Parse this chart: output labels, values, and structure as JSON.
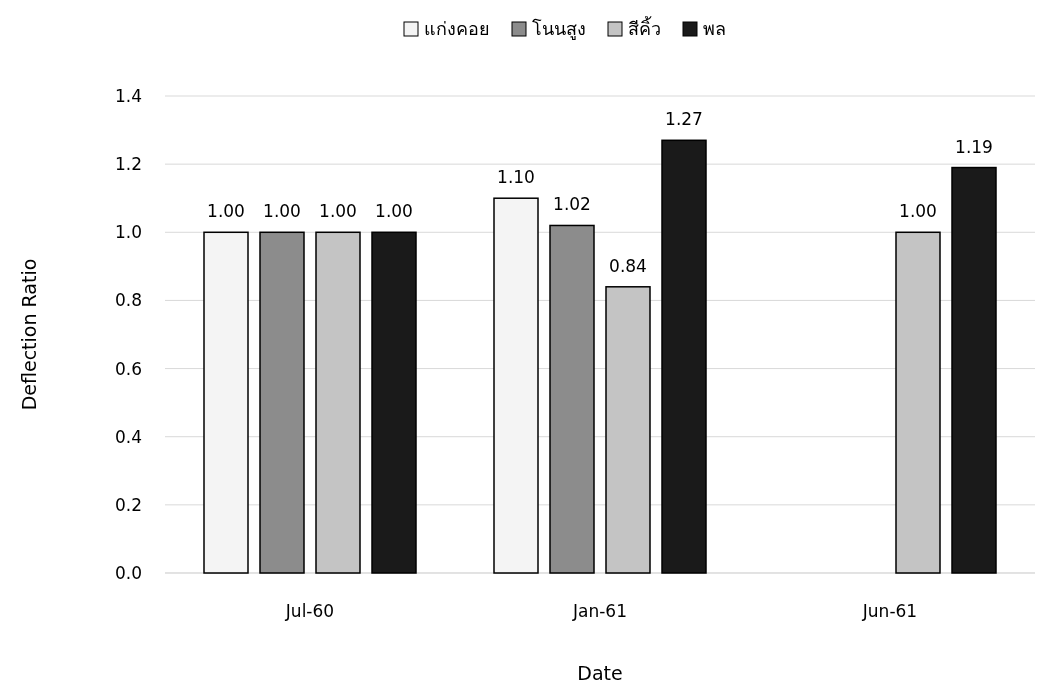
{
  "chart_data": {
    "type": "bar",
    "xlabel": "Date",
    "ylabel": "Deflection Ratio",
    "categories": [
      "Jul-60",
      "Jan-61",
      "Jun-61"
    ],
    "series": [
      {
        "name": "แก่งคอย",
        "color": "#f4f4f4",
        "values": [
          1.0,
          1.1,
          null
        ],
        "value_labels": [
          "1.00",
          "1.10",
          null
        ]
      },
      {
        "name": "โนนสูง",
        "color": "#8c8c8c",
        "values": [
          1.0,
          1.02,
          null
        ],
        "value_labels": [
          "1.00",
          "1.02",
          null
        ]
      },
      {
        "name": "สีคิ้ว",
        "color": "#c4c4c4",
        "values": [
          1.0,
          0.84,
          1.0
        ],
        "value_labels": [
          "1.00",
          "0.84",
          "1.00"
        ]
      },
      {
        "name": "พล",
        "color": "#1a1a1a",
        "values": [
          1.0,
          1.27,
          1.19
        ],
        "value_labels": [
          "1.00",
          "1.27",
          "1.19"
        ]
      }
    ],
    "ylim": [
      0,
      1.4
    ],
    "yticks": [
      {
        "value": 0,
        "label": "0.0"
      },
      {
        "value": 0.2,
        "label": "0.2"
      },
      {
        "value": 0.4,
        "label": "0.4"
      },
      {
        "value": 0.6,
        "label": "0.6"
      },
      {
        "value": 0.8,
        "label": "0.8"
      },
      {
        "value": 1.0,
        "label": "1.0"
      },
      {
        "value": 1.2,
        "label": "1.2"
      },
      {
        "value": 1.4,
        "label": "1.4"
      }
    ],
    "grid": "y",
    "legend": "top"
  }
}
